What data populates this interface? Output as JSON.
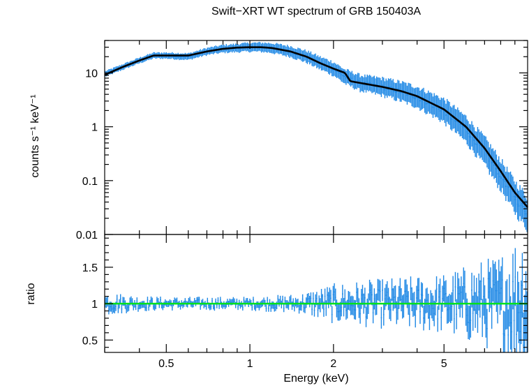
{
  "chart_data": [
    {
      "type": "scatter",
      "title": "Swift−XRT WT spectrum of GRB 150403A",
      "ylabel": "counts s⁻¹ keV⁻¹",
      "xlabel": "",
      "xscale": "log",
      "yscale": "log",
      "xlim": [
        0.3,
        10
      ],
      "ylim": [
        0.01,
        40
      ],
      "yticks": [
        {
          "v": 0.01,
          "label": "0.01"
        },
        {
          "v": 0.1,
          "label": "0.1"
        },
        {
          "v": 1,
          "label": "1"
        },
        {
          "v": 10,
          "label": "10"
        }
      ],
      "series": [
        {
          "name": "",
          "color": "#1e88e5",
          "kind": "data with error bars",
          "x": [
            0.3,
            0.35,
            0.4,
            0.45,
            0.5,
            0.6,
            0.7,
            0.8,
            0.9,
            1.0,
            1.1,
            1.2,
            1.4,
            1.6,
            1.8,
            2.0,
            2.2,
            2.5,
            3.0,
            3.5,
            4.0,
            5.0,
            6.0,
            7.0,
            8.0,
            9.0,
            10.0
          ],
          "y": [
            9.5,
            13,
            17,
            21,
            21,
            20,
            25,
            28,
            29,
            30,
            30,
            29,
            25,
            20,
            15,
            12,
            8.5,
            6.5,
            5.5,
            4.5,
            3.6,
            2.0,
            0.9,
            0.35,
            0.13,
            0.05,
            0.025
          ]
        },
        {
          "name": "",
          "color": "#000000",
          "kind": "model",
          "x": [
            0.3,
            0.35,
            0.4,
            0.45,
            0.5,
            0.6,
            0.7,
            0.8,
            0.9,
            1.0,
            1.1,
            1.2,
            1.4,
            1.6,
            1.8,
            2.0,
            2.2,
            2.3,
            2.5,
            3.0,
            3.5,
            4.0,
            5.0,
            6.0,
            7.0,
            8.0,
            9.0,
            10.0
          ],
          "y": [
            9.2,
            13,
            17,
            21,
            21,
            21,
            25,
            28,
            29.5,
            30,
            30,
            29,
            25,
            20,
            15,
            12,
            10,
            7,
            6.5,
            5.5,
            4.6,
            3.7,
            2.1,
            1.0,
            0.4,
            0.15,
            0.06,
            0.032
          ]
        }
      ]
    },
    {
      "type": "scatter",
      "title": "",
      "ylabel": "ratio",
      "xlabel": "Energy (keV)",
      "xscale": "log",
      "yscale": "linear",
      "xlim": [
        0.3,
        10
      ],
      "ylim": [
        0.33,
        1.95
      ],
      "xticks": [
        {
          "v": 0.5,
          "label": "0.5"
        },
        {
          "v": 1,
          "label": "1"
        },
        {
          "v": 2,
          "label": "2"
        },
        {
          "v": 5,
          "label": "5"
        }
      ],
      "yticks": [
        {
          "v": 0.5,
          "label": "0.5"
        },
        {
          "v": 1,
          "label": "1"
        },
        {
          "v": 1.5,
          "label": "1.5"
        }
      ],
      "series": [
        {
          "name": "",
          "color": "#1e88e5",
          "kind": "ratio with error bars",
          "x": [
            0.3,
            0.35,
            0.4,
            0.5,
            0.7,
            1.0,
            1.5,
            2.0,
            3.0,
            5.0,
            8.0,
            10.0
          ],
          "y": [
            1.0,
            1.0,
            0.98,
            1.0,
            0.99,
            1.0,
            1.0,
            1.0,
            1.0,
            1.0,
            1.0,
            1.0
          ],
          "error_halfwidth": [
            0.12,
            0.1,
            0.08,
            0.07,
            0.07,
            0.07,
            0.1,
            0.2,
            0.25,
            0.3,
            0.5,
            0.8
          ]
        },
        {
          "name": "",
          "color": "#00e01e",
          "kind": "reference line",
          "x": [
            0.3,
            10
          ],
          "y": [
            1,
            1
          ]
        }
      ]
    }
  ]
}
